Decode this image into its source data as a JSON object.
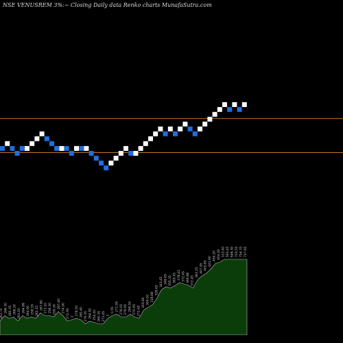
{
  "header": {
    "symbol": "NSE VENUSREM",
    "change": "3%",
    "description": "Closing Daily data  Renko  charts MunafaSutra.com"
  },
  "chart_data": {
    "type": "renko",
    "title": "NSE VENUSREM 3% Closing Daily data Renko charts MunafaSutra.com",
    "colors": {
      "up": "#ffffff",
      "down": "#1e6fe0",
      "background": "#000000",
      "reference_line": "#c8782a",
      "volume_fill": "#0b3d0b",
      "volume_stroke": "#b8b8b8",
      "label": "#cccccc"
    },
    "reference_lines": [
      {
        "brick_level": 17
      },
      {
        "brick_level": 10
      }
    ],
    "bricks": [
      {
        "level": 11,
        "dir": "down"
      },
      {
        "level": 12,
        "dir": "up"
      },
      {
        "level": 11,
        "dir": "down"
      },
      {
        "level": 10,
        "dir": "down"
      },
      {
        "level": 11,
        "dir": "down"
      },
      {
        "level": 11,
        "dir": "up"
      },
      {
        "level": 12,
        "dir": "up"
      },
      {
        "level": 13,
        "dir": "up"
      },
      {
        "level": 14,
        "dir": "up"
      },
      {
        "level": 13,
        "dir": "down"
      },
      {
        "level": 12,
        "dir": "down"
      },
      {
        "level": 11,
        "dir": "down"
      },
      {
        "level": 11,
        "dir": "up"
      },
      {
        "level": 11,
        "dir": "down"
      },
      {
        "level": 10,
        "dir": "down"
      },
      {
        "level": 11,
        "dir": "up"
      },
      {
        "level": 11,
        "dir": "down"
      },
      {
        "level": 11,
        "dir": "up"
      },
      {
        "level": 10,
        "dir": "down"
      },
      {
        "level": 9,
        "dir": "down"
      },
      {
        "level": 8,
        "dir": "down"
      },
      {
        "level": 7,
        "dir": "down"
      },
      {
        "level": 8,
        "dir": "up"
      },
      {
        "level": 9,
        "dir": "up"
      },
      {
        "level": 10,
        "dir": "up"
      },
      {
        "level": 11,
        "dir": "up"
      },
      {
        "level": 10,
        "dir": "down"
      },
      {
        "level": 10,
        "dir": "up"
      },
      {
        "level": 11,
        "dir": "up"
      },
      {
        "level": 12,
        "dir": "up"
      },
      {
        "level": 13,
        "dir": "up"
      },
      {
        "level": 14,
        "dir": "up"
      },
      {
        "level": 15,
        "dir": "up"
      },
      {
        "level": 14,
        "dir": "down"
      },
      {
        "level": 15,
        "dir": "up"
      },
      {
        "level": 14,
        "dir": "down"
      },
      {
        "level": 15,
        "dir": "up"
      },
      {
        "level": 16,
        "dir": "up"
      },
      {
        "level": 15,
        "dir": "down"
      },
      {
        "level": 14,
        "dir": "down"
      },
      {
        "level": 15,
        "dir": "up"
      },
      {
        "level": 16,
        "dir": "up"
      },
      {
        "level": 17,
        "dir": "up"
      },
      {
        "level": 18,
        "dir": "up"
      },
      {
        "level": 19,
        "dir": "up"
      },
      {
        "level": 20,
        "dir": "up"
      },
      {
        "level": 19,
        "dir": "down"
      },
      {
        "level": 20,
        "dir": "up"
      },
      {
        "level": 19,
        "dir": "down"
      },
      {
        "level": 20,
        "dir": "up"
      }
    ],
    "volume_profile": [
      10,
      14,
      12,
      13,
      10,
      14,
      12,
      13,
      12,
      16,
      14,
      14,
      13,
      17,
      14,
      10,
      11,
      12,
      11,
      8,
      10,
      9,
      8,
      8,
      12,
      14,
      15,
      13,
      13,
      15,
      13,
      12,
      18,
      20,
      22,
      27,
      33,
      35,
      34,
      36,
      38,
      37,
      36,
      34,
      40,
      43,
      45,
      48,
      52,
      53,
      55,
      55,
      55,
      55,
      55,
      55
    ],
    "volume_labels": [
      "261.70",
      "266.30",
      "260.35",
      "266.50",
      "261.00",
      "264.88",
      "264.90",
      "258.55",
      "262.15",
      "267.80",
      "271.10",
      "256.30",
      "259.30",
      "267.40",
      "274.90",
      "272.95",
      "2",
      "276.50",
      "280.40",
      "279.35",
      "264.90",
      "254.40",
      "260.35",
      "271.45",
      "1",
      "0.55",
      "271.95",
      "276.05",
      "276.95",
      "269.50",
      "270.95",
      "272.65",
      "305.80",
      "309.00",
      "318.68",
      "328.65",
      "343.45",
      "348.65",
      "355.35",
      "365.45",
      "378.42",
      "372.45",
      "369.88",
      "372.45",
      "363.25",
      "407.95",
      "405.85",
      "441.90",
      "459.20",
      "454.20",
      "513.40",
      "593.45",
      "646.30",
      "703.55",
      "754.70",
      "727.65"
    ]
  }
}
